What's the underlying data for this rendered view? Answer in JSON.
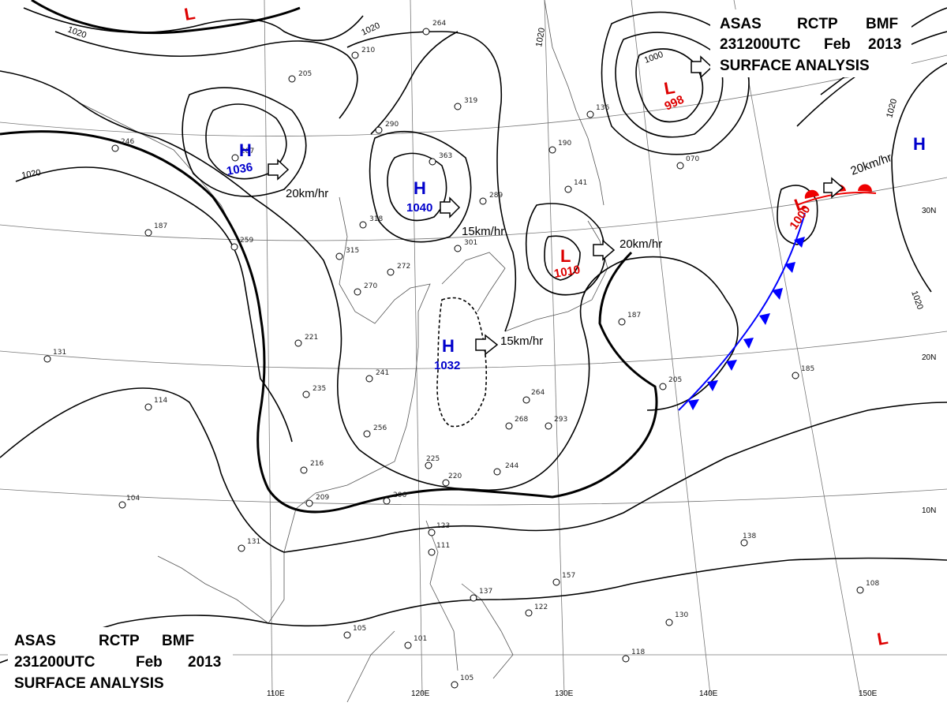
{
  "header_top": {
    "line1": [
      "ASAS",
      "RCTP",
      "BMF"
    ],
    "line2": [
      "231200UTC",
      "Feb",
      "2013"
    ],
    "line3": "SURFACE ANALYSIS"
  },
  "header_bottom": {
    "line1": [
      "ASAS",
      "RCTP",
      "BMF"
    ],
    "line2": [
      "231200UTC",
      "Feb",
      "2013"
    ],
    "line3": "SURFACE ANALYSIS"
  },
  "longitude_labels": [
    "110E",
    "120E",
    "130E",
    "140E",
    "150E"
  ],
  "latitude_labels": [
    "30N",
    "20N",
    "10N"
  ],
  "isobar_labels": [
    "1020",
    "1020",
    "1020",
    "1020",
    "1000",
    "1020",
    "1020"
  ],
  "pressure_systems": [
    {
      "type": "H",
      "value": "1036",
      "color": "#0000cc"
    },
    {
      "type": "H",
      "value": "1040",
      "color": "#0000cc"
    },
    {
      "type": "H",
      "value": "1032",
      "color": "#0000cc"
    },
    {
      "type": "H",
      "value": "",
      "color": "#0000cc"
    },
    {
      "type": "L",
      "value": "998",
      "color": "#dd0000"
    },
    {
      "type": "L",
      "value": "1010",
      "color": "#dd0000"
    },
    {
      "type": "L",
      "value": "1000",
      "color": "#dd0000"
    },
    {
      "type": "L",
      "value": "",
      "color": "#dd0000"
    },
    {
      "type": "L",
      "value": "",
      "color": "#dd0000"
    }
  ],
  "motion_labels": [
    "20km/hr",
    "15km/hr",
    "15km/hr",
    "20km/hr",
    "20km/hr"
  ],
  "station_values": [
    "264",
    "210",
    "205",
    "319",
    "290",
    "363",
    "289",
    "318",
    "315",
    "272",
    "301",
    "270",
    "221",
    "241",
    "235",
    "256",
    "216",
    "209",
    "206",
    "225",
    "220",
    "264",
    "268",
    "293",
    "244",
    "123",
    "111",
    "137",
    "122",
    "157",
    "105",
    "101",
    "138",
    "130",
    "118",
    "105",
    "108",
    "187",
    "205",
    "185",
    "070",
    "190",
    "141",
    "136",
    "131",
    "114",
    "104",
    "246",
    "287",
    "259",
    "187",
    "131"
  ],
  "colors": {
    "high": "#0000cc",
    "low": "#dd0000",
    "front_cold": "#0000ff",
    "front_warm": "#ee0000",
    "line": "#000000"
  }
}
